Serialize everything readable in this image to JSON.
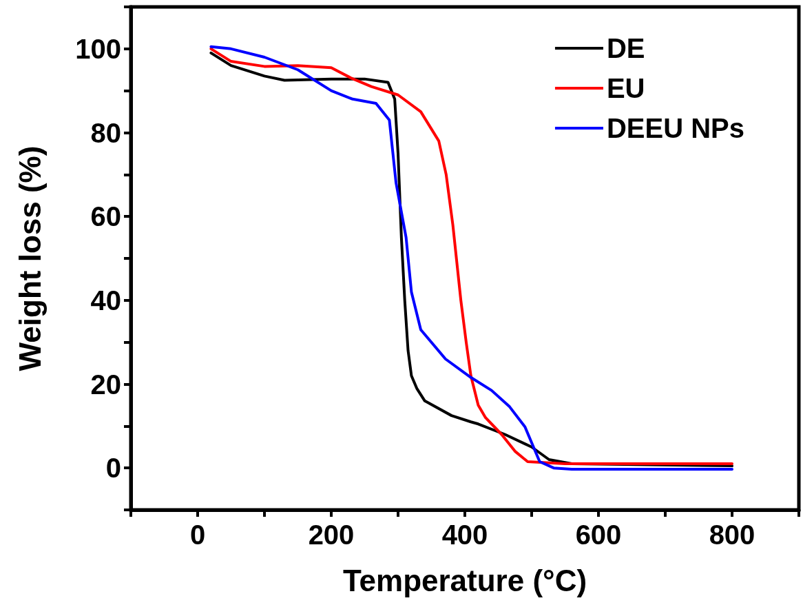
{
  "chart_data": {
    "type": "line",
    "xlabel": "Temperature (°C)",
    "ylabel": "Weight loss (%)",
    "xlim": [
      -100,
      900
    ],
    "ylim": [
      -10,
      110
    ],
    "xticks": [
      {
        "value": -100,
        "label": null
      },
      0,
      {
        "value": 100,
        "label": null
      },
      200,
      {
        "value": 300,
        "label": null
      },
      400,
      {
        "value": 500,
        "label": null
      },
      600,
      {
        "value": 700,
        "label": null
      },
      800,
      {
        "value": 900,
        "label": null
      }
    ],
    "yticks": [
      {
        "value": -10,
        "label": null
      },
      0,
      {
        "value": 10,
        "label": null
      },
      20,
      {
        "value": 30,
        "label": null
      },
      40,
      {
        "value": 50,
        "label": null
      },
      60,
      {
        "value": 70,
        "label": null
      },
      80,
      {
        "value": 90,
        "label": null
      },
      100,
      {
        "value": 110,
        "label": null
      }
    ],
    "grid": false,
    "legend": "top right",
    "marker": "none",
    "line_style": "solid",
    "series": [
      {
        "name": "DE",
        "color": "#000000",
        "x": [
          20,
          50,
          100,
          130,
          200,
          250,
          285,
          295,
          300,
          305,
          310,
          315,
          320,
          328,
          340,
          380,
          409,
          420,
          460,
          500,
          526,
          560,
          800
        ],
        "values": [
          99,
          96,
          93.5,
          92.5,
          92.8,
          92.8,
          92,
          88,
          75,
          55,
          40,
          28,
          22,
          19,
          16,
          12.5,
          11,
          10.5,
          8,
          5,
          2,
          1,
          0.5
        ]
      },
      {
        "name": "EU",
        "color": "#ff0000",
        "x": [
          20,
          50,
          100,
          150,
          200,
          230,
          260,
          300,
          334,
          361,
          372,
          382,
          394,
          402,
          409,
          420,
          431,
          455,
          475,
          494,
          550,
          800
        ],
        "values": [
          100,
          97,
          95.8,
          96,
          95.5,
          93,
          91,
          89,
          85,
          78,
          70,
          58,
          40,
          30,
          22,
          15,
          12,
          8,
          4,
          1.5,
          1,
          1
        ]
      },
      {
        "name": "DEEU NPs",
        "color": "#0000ff",
        "x": [
          20,
          50,
          100,
          150,
          200,
          232,
          267,
          287,
          297,
          312,
          320,
          334,
          371,
          409,
          440,
          467,
          490,
          512,
          533,
          560,
          800
        ],
        "values": [
          100.5,
          100,
          98,
          95,
          90,
          88,
          87,
          83,
          68,
          55,
          42,
          33,
          26,
          21.6,
          18.5,
          14.6,
          9.8,
          1.5,
          0,
          -0.3,
          -0.3
        ]
      }
    ]
  }
}
